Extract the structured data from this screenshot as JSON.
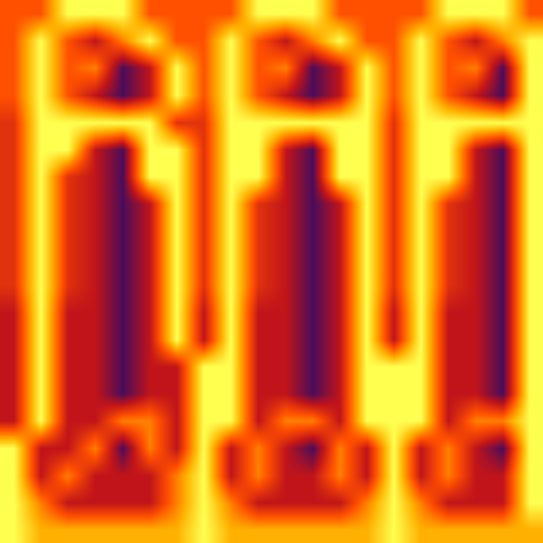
{
  "chart_data": {
    "type": "heatmap",
    "tick_labels": false,
    "grid": false,
    "xlim": [
      -0.5,
      19.5
    ],
    "ylim": [
      19.5,
      -0.5
    ],
    "zlim": [
      0,
      10
    ],
    "cells": [
      [
        6,
        6,
        10,
        10,
        10,
        6,
        6,
        6,
        6,
        10,
        10,
        10,
        6,
        6,
        6,
        6,
        10,
        10,
        10,
        6
      ],
      [
        6,
        10,
        6,
        4,
        7,
        10,
        6,
        6,
        10,
        6,
        4,
        7,
        10,
        6,
        6,
        10,
        6,
        4,
        7,
        10
      ],
      [
        6,
        10,
        6,
        7,
        2,
        4,
        10,
        6,
        10,
        6,
        7,
        2,
        4,
        10,
        6,
        10,
        6,
        7,
        2,
        10
      ],
      [
        6,
        10,
        6,
        4,
        2,
        4,
        10,
        6,
        10,
        6,
        4,
        2,
        4,
        10,
        6,
        10,
        6,
        4,
        2,
        10
      ],
      [
        5,
        10,
        10,
        10,
        10,
        10,
        5,
        5,
        10,
        10,
        10,
        10,
        10,
        10,
        5,
        10,
        10,
        10,
        10,
        10
      ],
      [
        5,
        10,
        10,
        4,
        2,
        10,
        10,
        5,
        10,
        10,
        4,
        2,
        10,
        10,
        5,
        10,
        10,
        4,
        2,
        10
      ],
      [
        5,
        10,
        5,
        4,
        2,
        10,
        10,
        5,
        10,
        10,
        4,
        2,
        10,
        10,
        5,
        10,
        10,
        4,
        2,
        10
      ],
      [
        5,
        10,
        5,
        4,
        2,
        4,
        10,
        5,
        10,
        5,
        4,
        2,
        4,
        10,
        5,
        10,
        5,
        4,
        2,
        10
      ],
      [
        5,
        10,
        5,
        4,
        2,
        4,
        10,
        5,
        10,
        5,
        4,
        2,
        4,
        10,
        5,
        10,
        5,
        4,
        2,
        10
      ],
      [
        5,
        10,
        5,
        4,
        2,
        4,
        10,
        5,
        10,
        5,
        4,
        2,
        4,
        10,
        5,
        10,
        5,
        4,
        2,
        10
      ],
      [
        5,
        10,
        5,
        4,
        2,
        4,
        10,
        5,
        10,
        5,
        4,
        2,
        4,
        10,
        5,
        10,
        5,
        4,
        2,
        10
      ],
      [
        4,
        10,
        4,
        4,
        2,
        4,
        10,
        4,
        10,
        4,
        4,
        2,
        4,
        10,
        4,
        10,
        4,
        4,
        2,
        10
      ],
      [
        4,
        10,
        4,
        4,
        2,
        4,
        10,
        4,
        10,
        4,
        4,
        2,
        4,
        10,
        4,
        10,
        4,
        4,
        2,
        10
      ],
      [
        4,
        10,
        4,
        4,
        2,
        4,
        4,
        10,
        10,
        4,
        4,
        2,
        4,
        10,
        10,
        10,
        4,
        4,
        2,
        10
      ],
      [
        4,
        10,
        4,
        4,
        2,
        4,
        4,
        10,
        10,
        4,
        4,
        2,
        4,
        10,
        10,
        10,
        4,
        4,
        2,
        10
      ],
      [
        4,
        10,
        4,
        4,
        7,
        7,
        4,
        10,
        10,
        4,
        7,
        7,
        4,
        10,
        10,
        10,
        4,
        7,
        7,
        10
      ],
      [
        10,
        4,
        4,
        7,
        2,
        7,
        4,
        10,
        4,
        7,
        4,
        2,
        7,
        4,
        10,
        4,
        7,
        4,
        2,
        10
      ],
      [
        10,
        4,
        7,
        4,
        4,
        4,
        7,
        10,
        4,
        7,
        4,
        4,
        7,
        4,
        10,
        4,
        7,
        4,
        4,
        10
      ],
      [
        10,
        7,
        4,
        4,
        4,
        4,
        7,
        10,
        7,
        4,
        4,
        4,
        4,
        7,
        10,
        7,
        4,
        4,
        4,
        10
      ],
      [
        10,
        8,
        8,
        8,
        8,
        8,
        8,
        10,
        8,
        8,
        8,
        8,
        8,
        8,
        10,
        8,
        8,
        8,
        8,
        8
      ]
    ]
  }
}
